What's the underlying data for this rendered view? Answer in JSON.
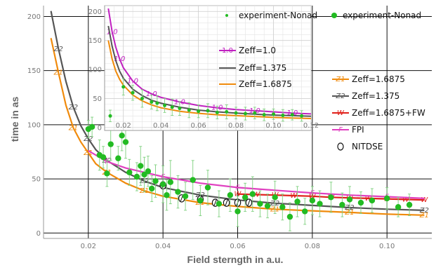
{
  "chart_data": [
    {
      "type": "scatter",
      "xlabel": "Field sterngth in a.u.",
      "ylabel": "time in as",
      "xlim": [
        0.008,
        0.112
      ],
      "ylim": [
        -5,
        210
      ],
      "xticks": [
        "0.02",
        "0.04",
        "0.06",
        "0.08",
        "0.10"
      ],
      "xtick_values": [
        0.02,
        0.04,
        0.06,
        0.08,
        0.1
      ],
      "yticks": [
        "0",
        "50",
        "100",
        "150",
        "200"
      ],
      "ytick_values": [
        0,
        50,
        100,
        150,
        200
      ],
      "grid": true,
      "legend_position": "right",
      "colors": {
        "green": "#22bb22",
        "grey": "#555555",
        "orange": "#f08a0b",
        "red": "#e0201a",
        "magenta": "#e040c0",
        "black": "#111111"
      },
      "legend": [
        {
          "marker": "Z1",
          "label": "Zeff=1.6875",
          "color": "#f08a0b"
        },
        {
          "marker": "Z2",
          "label": "Zeff=1.375",
          "color": "#555555"
        },
        {
          "marker": "W",
          "label": "Zeff=1.6875+FW",
          "color": "#e0201a"
        },
        {
          "marker": "F",
          "label": "FPI",
          "color": "#e040c0"
        },
        {
          "marker": "O",
          "label": "NITDSE",
          "color": "#111111"
        }
      ],
      "series": [
        {
          "name": "Zeff=1.6875",
          "marker": "Z1",
          "color": "#f08a0b",
          "x": [
            0.01,
            0.012,
            0.014,
            0.016,
            0.018,
            0.02,
            0.022,
            0.025,
            0.03,
            0.035,
            0.04,
            0.05,
            0.06,
            0.07,
            0.08,
            0.09,
            0.1,
            0.11
          ],
          "y": [
            180,
            148,
            118,
            97,
            84,
            74,
            64,
            56,
            46,
            39,
            34,
            28,
            24.5,
            22,
            20.5,
            19,
            17.5,
            16.5
          ]
        },
        {
          "name": "Zeff=1.375",
          "marker": "Z2",
          "color": "#555555",
          "x": [
            0.01,
            0.012,
            0.014,
            0.016,
            0.018,
            0.02,
            0.022,
            0.025,
            0.03,
            0.035,
            0.04,
            0.05,
            0.06,
            0.07,
            0.08,
            0.09,
            0.1,
            0.11
          ],
          "y": [
            205,
            170,
            140,
            116,
            99,
            87,
            77,
            67,
            56,
            48,
            42,
            35,
            30.5,
            27.5,
            25.5,
            23.5,
            22,
            21
          ]
        },
        {
          "name": "Zeff=1.6875+FW",
          "marker": "W",
          "color": "#e0201a",
          "x": [
            0.06,
            0.065,
            0.07,
            0.075,
            0.08,
            0.085,
            0.09,
            0.095,
            0.1,
            0.105,
            0.11
          ],
          "y": [
            36,
            35.5,
            35,
            34.5,
            34,
            33,
            32.5,
            32,
            31.5,
            31,
            30.5
          ]
        },
        {
          "name": "FPI",
          "marker": "F",
          "color": "#e040c0",
          "x": [
            0.02,
            0.025,
            0.03,
            0.04,
            0.05,
            0.06,
            0.07,
            0.08,
            0.09,
            0.1,
            0.11
          ],
          "y": [
            76,
            66,
            60,
            52,
            46,
            42,
            39.5,
            37,
            35,
            33.5,
            32
          ]
        },
        {
          "name": "NITDSE",
          "marker": "O",
          "color": "#111111",
          "x": [
            0.04,
            0.045,
            0.05,
            0.054,
            0.057,
            0.06,
            0.063
          ],
          "y": [
            44,
            32,
            31,
            28,
            28,
            28,
            28
          ]
        },
        {
          "name": "experiment-Nonad",
          "marker": "dot",
          "color": "#22bb22",
          "x": [
            0.02,
            0.021,
            0.023,
            0.024,
            0.025,
            0.026,
            0.028,
            0.029,
            0.03,
            0.031,
            0.033,
            0.034,
            0.035,
            0.036,
            0.037,
            0.038,
            0.04,
            0.041,
            0.042,
            0.044,
            0.046,
            0.048,
            0.05,
            0.052,
            0.055,
            0.058,
            0.06,
            0.062,
            0.064,
            0.066,
            0.068,
            0.07,
            0.072,
            0.074,
            0.076,
            0.078,
            0.08,
            0.082,
            0.085,
            0.088,
            0.09,
            0.093,
            0.096,
            0.1,
            0.103,
            0.106
          ],
          "y": [
            96,
            98,
            72,
            70,
            55,
            82,
            69,
            90,
            84,
            56,
            52,
            62,
            54,
            57,
            41,
            48,
            45,
            35,
            47,
            38,
            34,
            49,
            30,
            42,
            27,
            35,
            20,
            33,
            36,
            27,
            25,
            33,
            24,
            15,
            29,
            20,
            30,
            27,
            33,
            26,
            31,
            28,
            30,
            32,
            24,
            26
          ],
          "err": [
            8,
            9,
            14,
            10,
            12,
            15,
            11,
            14,
            15,
            12,
            13,
            18,
            16,
            14,
            12,
            15,
            17,
            14,
            20,
            15,
            13,
            18,
            14,
            16,
            12,
            15,
            14,
            13,
            16,
            12,
            11,
            15,
            12,
            13,
            14,
            12,
            13,
            12,
            14,
            11,
            12,
            10,
            11,
            10,
            9,
            10
          ]
        }
      ]
    },
    {
      "type": "scatter",
      "xlim": [
        0.01,
        0.12
      ],
      "ylim": [
        -5,
        210
      ],
      "xticks": [
        "0.02",
        "0.04",
        "0.06",
        "0.08",
        "0.10",
        "0.12"
      ],
      "xtick_values": [
        0.02,
        0.04,
        0.06,
        0.08,
        0.1,
        0.12
      ],
      "yticks": [
        "0",
        "50",
        "100",
        "150",
        "200"
      ],
      "ytick_values": [
        0,
        50,
        100,
        150,
        200
      ],
      "grid": true,
      "legend_position": "right",
      "legend": [
        {
          "marker": "dot",
          "label": "experiment-Nonad",
          "color": "#22bb22"
        },
        {
          "marker": "1.0",
          "label": "Zeff=1.0",
          "color": "#c020c0"
        },
        {
          "marker": "line",
          "label": "Zeff=1.375",
          "color": "#555555"
        },
        {
          "marker": "line",
          "label": "Zeff=1.6875",
          "color": "#f08a0b"
        }
      ],
      "series": [
        {
          "name": "Zeff=1.0",
          "marker": "1.0",
          "color": "#c020c0",
          "x": [
            0.012,
            0.014,
            0.016,
            0.018,
            0.02,
            0.025,
            0.03,
            0.035,
            0.04,
            0.05,
            0.06,
            0.07,
            0.08,
            0.09,
            0.1,
            0.11,
            0.12
          ],
          "y": [
            205,
            165,
            138,
            118,
            103,
            80,
            66,
            58,
            52,
            44,
            38,
            34,
            31,
            29,
            27,
            25,
            23.5
          ]
        },
        {
          "name": "Zeff=1.375",
          "marker": "line",
          "color": "#555555",
          "x": [
            0.012,
            0.014,
            0.016,
            0.018,
            0.02,
            0.025,
            0.03,
            0.035,
            0.04,
            0.05,
            0.06,
            0.07,
            0.08,
            0.09,
            0.1,
            0.11,
            0.12
          ],
          "y": [
            175,
            140,
            115,
            97,
            85,
            66,
            55,
            47,
            42,
            35,
            30,
            27,
            25,
            23,
            21.5,
            20.5,
            19.5
          ]
        },
        {
          "name": "Zeff=1.6875",
          "marker": "line",
          "color": "#f08a0b",
          "x": [
            0.012,
            0.014,
            0.016,
            0.018,
            0.02,
            0.025,
            0.03,
            0.035,
            0.04,
            0.05,
            0.06,
            0.07,
            0.08,
            0.09,
            0.1,
            0.11,
            0.12
          ],
          "y": [
            150,
            118,
            97,
            83,
            73,
            56,
            46,
            39,
            34,
            28,
            24.5,
            22,
            20.5,
            19,
            17.5,
            16.5,
            15.5
          ]
        },
        {
          "name": "experiment-Nonad",
          "marker": "dot",
          "color": "#22bb22",
          "x": [
            0.013,
            0.02,
            0.025,
            0.03,
            0.035,
            0.038,
            0.042,
            0.046,
            0.05,
            0.055,
            0.06,
            0.065,
            0.07,
            0.075,
            0.08,
            0.085,
            0.09,
            0.095,
            0.1,
            0.105,
            0.11,
            0.115
          ],
          "y": [
            20,
            70,
            60,
            50,
            44,
            42,
            38,
            35,
            33,
            30,
            28,
            29,
            26,
            27,
            25,
            24,
            25,
            22,
            23,
            21,
            22,
            20
          ],
          "err": [
            10,
            14,
            13,
            15,
            12,
            13,
            12,
            14,
            12,
            13,
            11,
            12,
            11,
            12,
            10,
            11,
            10,
            10,
            9,
            10,
            9,
            9
          ]
        }
      ]
    }
  ]
}
